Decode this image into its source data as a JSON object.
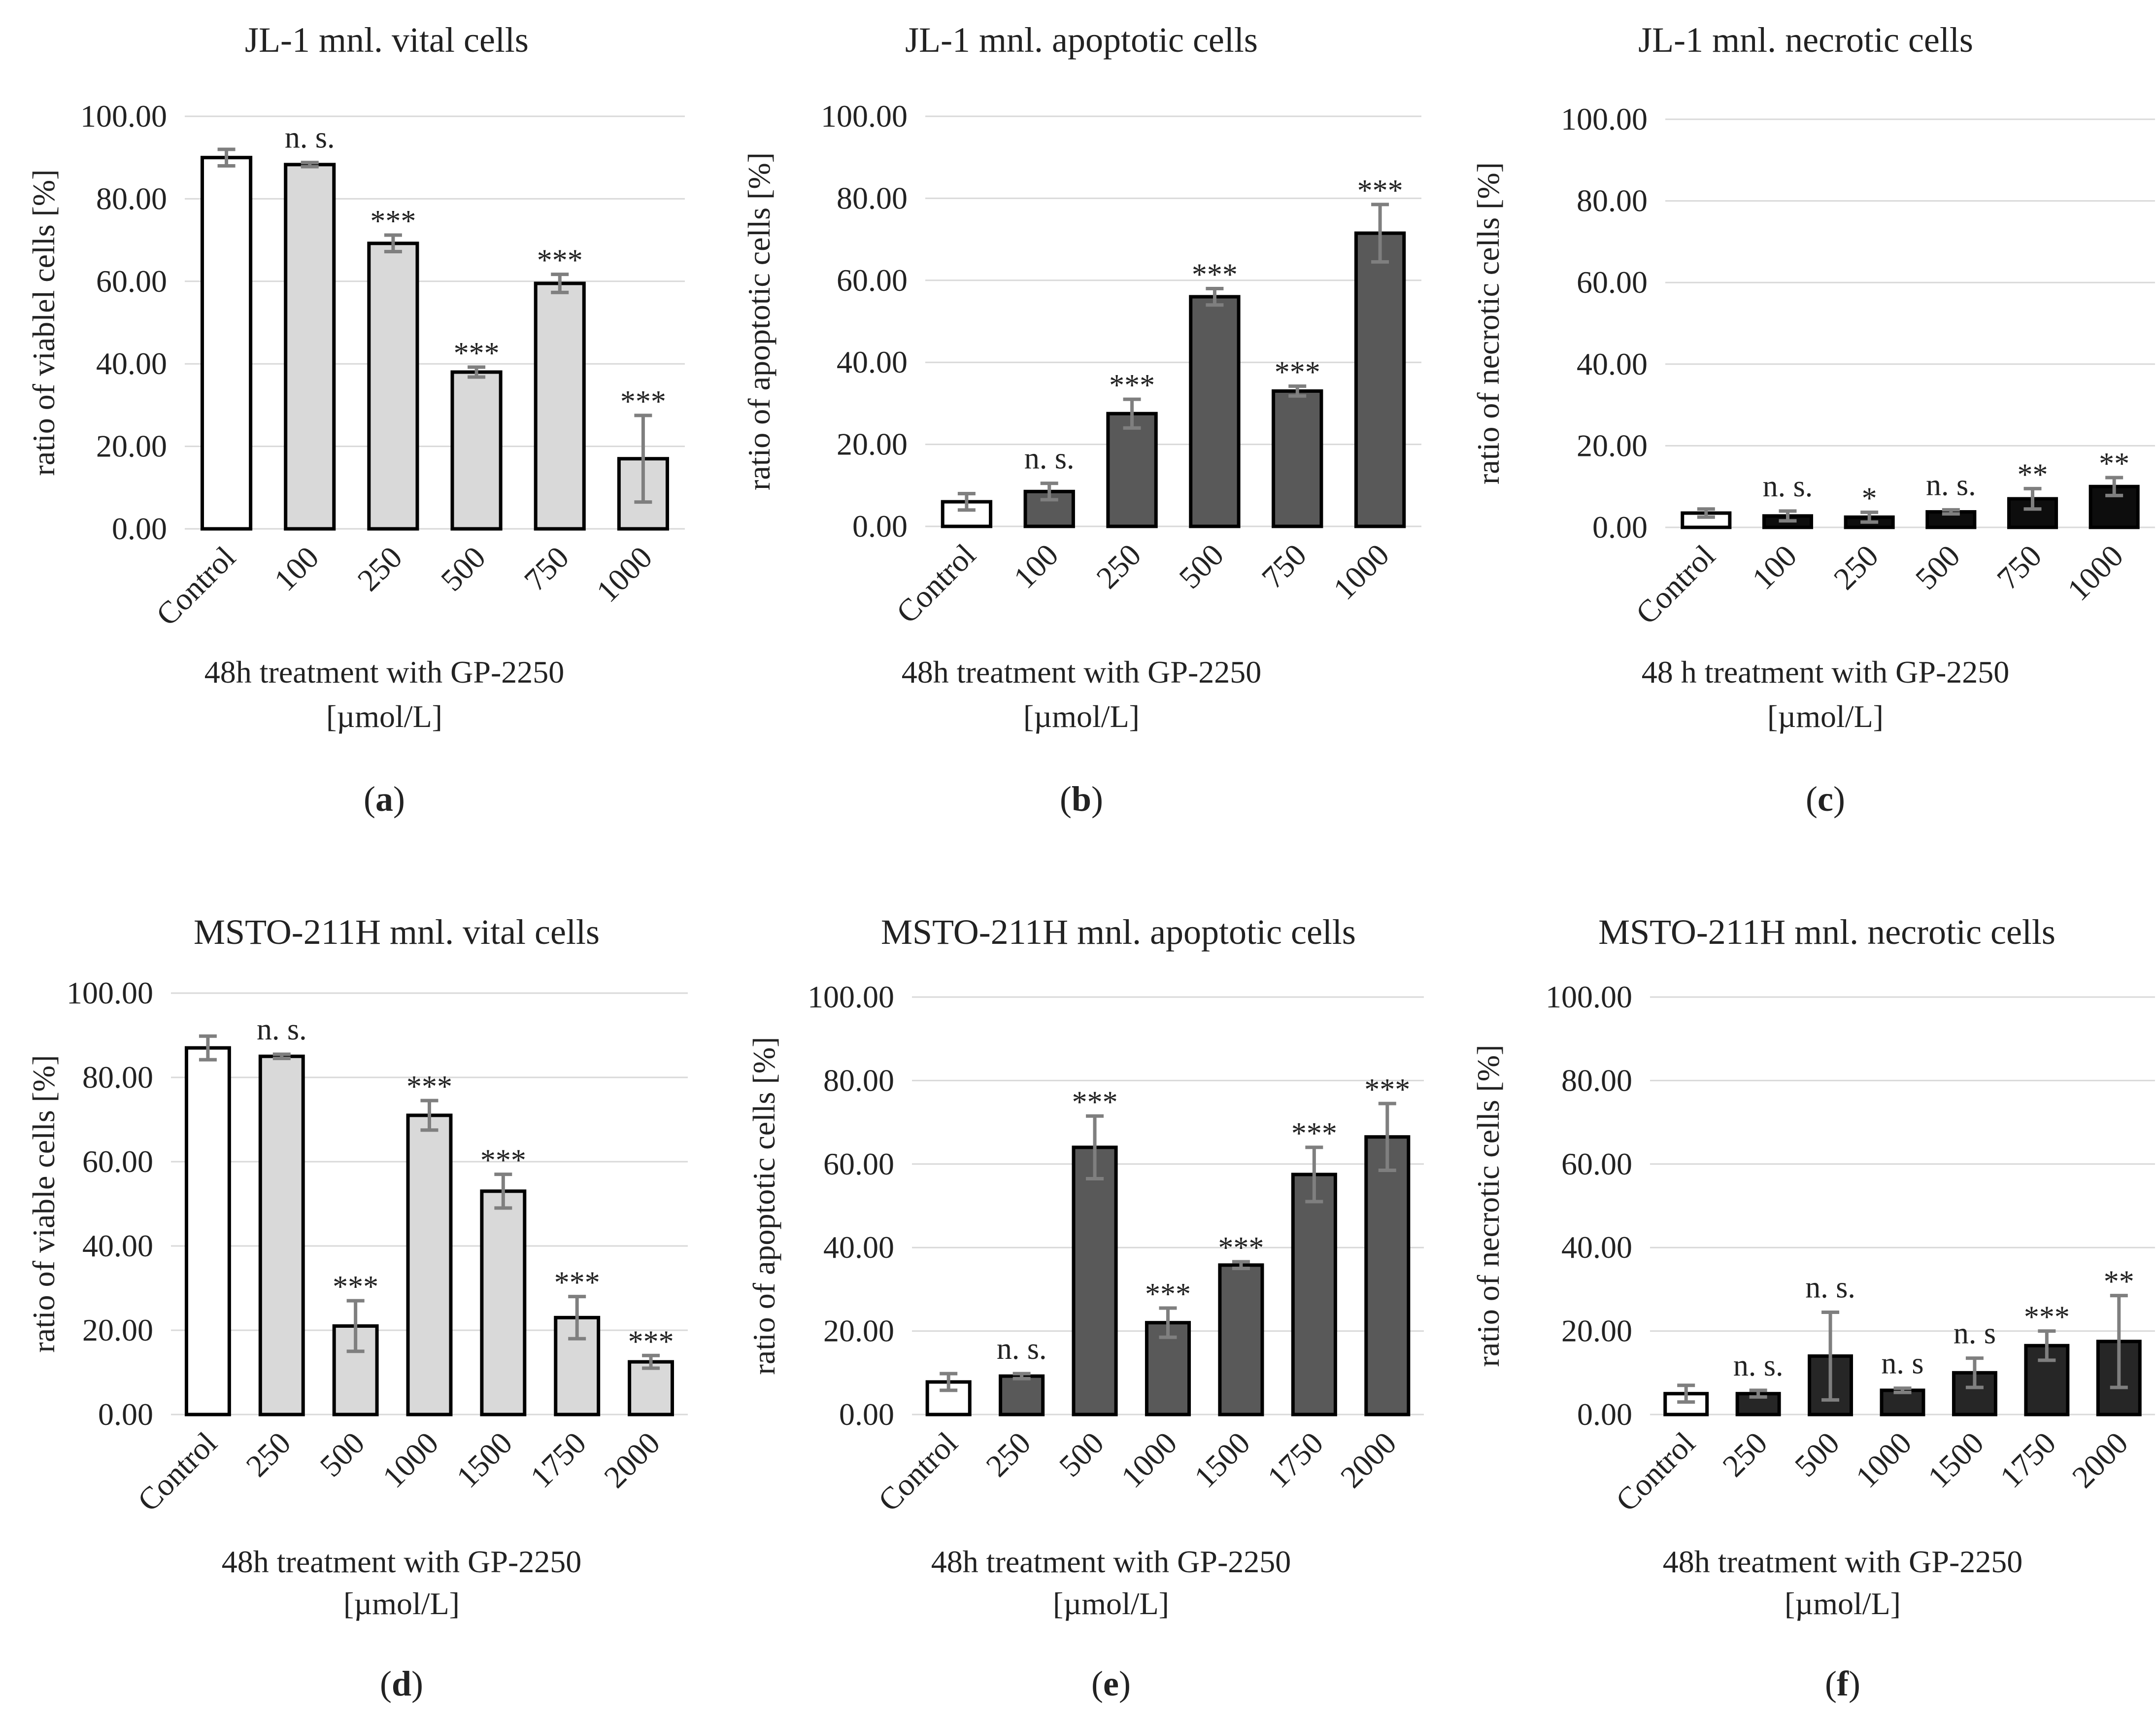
{
  "chart_data": [
    {
      "id": "a",
      "type": "bar",
      "title": "JL-1 mnl. vital cells",
      "ylabel": "ratio of viablel cells [%]",
      "xlabel": "48h treatment with GP-2250",
      "xlabel_unit": "[µmol/L]",
      "ylim": [
        0,
        100
      ],
      "yticks": [
        "0.00",
        "20.00",
        "40.00",
        "60.00",
        "80.00",
        "100.00"
      ],
      "categories": [
        "Control",
        "100",
        "250",
        "500",
        "750",
        "1000"
      ],
      "values": [
        90.0,
        88.3,
        69.2,
        38.0,
        59.5,
        17.0
      ],
      "errors": [
        2.0,
        0.5,
        2.0,
        1.2,
        2.2,
        10.5
      ],
      "significance": [
        "",
        "n. s.",
        "***",
        "***",
        "***",
        "***"
      ],
      "bar_colors": [
        "#ffffff",
        "#d9d9d9",
        "#d9d9d9",
        "#d9d9d9",
        "#d9d9d9",
        "#d9d9d9"
      ],
      "panel": "a"
    },
    {
      "id": "b",
      "type": "bar",
      "title": "JL-1 mnl. apoptotic cells",
      "ylabel": "ratio of apoptotic cells [%]",
      "xlabel": "48h treatment with GP-2250",
      "xlabel_unit": "[µmol/L]",
      "ylim": [
        0,
        100
      ],
      "yticks": [
        "0.00",
        "20.00",
        "40.00",
        "60.00",
        "80.00",
        "100.00"
      ],
      "categories": [
        "Control",
        "100",
        "250",
        "500",
        "750",
        "1000"
      ],
      "values": [
        6.0,
        8.5,
        27.5,
        56.0,
        33.0,
        71.5
      ],
      "errors": [
        2.0,
        2.0,
        3.5,
        2.0,
        1.2,
        7.0
      ],
      "significance": [
        "",
        "n. s.",
        "***",
        "***",
        "***",
        "***"
      ],
      "bar_colors": [
        "#ffffff",
        "#595959",
        "#595959",
        "#595959",
        "#595959",
        "#595959"
      ],
      "panel": "b"
    },
    {
      "id": "c",
      "type": "bar",
      "title": "JL-1 mnl. necrotic cells",
      "ylabel": "ratio of necrotic cells [%]",
      "xlabel": "48 h treatment with GP-2250",
      "xlabel_unit": "[µmol/L]",
      "ylim": [
        0,
        100
      ],
      "yticks": [
        "0.00",
        "20.00",
        "40.00",
        "60.00",
        "80.00",
        "100.00"
      ],
      "categories": [
        "Control",
        "100",
        "250",
        "500",
        "750",
        "1000"
      ],
      "values": [
        3.5,
        2.8,
        2.5,
        3.8,
        7.0,
        10.0
      ],
      "errors": [
        1.0,
        1.2,
        1.2,
        0.5,
        2.5,
        2.2
      ],
      "significance": [
        "",
        "n. s.",
        "*",
        "n. s.",
        "**",
        "**"
      ],
      "bar_colors": [
        "#ffffff",
        "#0d0d0d",
        "#0d0d0d",
        "#0d0d0d",
        "#0d0d0d",
        "#0d0d0d"
      ],
      "panel": "c"
    },
    {
      "id": "d",
      "type": "bar",
      "title": "MSTO-211H mnl. vital cells",
      "ylabel": "ratio of viable cells [%]",
      "xlabel": "48h treatment with GP-2250",
      "xlabel_unit": "[µmol/L]",
      "ylim": [
        0,
        100
      ],
      "yticks": [
        "0.00",
        "20.00",
        "40.00",
        "60.00",
        "80.00",
        "100.00"
      ],
      "categories": [
        "Control",
        "250",
        "500",
        "1000",
        "1500",
        "1750",
        "2000"
      ],
      "values": [
        87.0,
        85.0,
        21.0,
        71.0,
        53.0,
        23.0,
        12.5
      ],
      "errors": [
        2.8,
        0.5,
        6.0,
        3.5,
        4.0,
        5.0,
        1.5
      ],
      "significance": [
        "",
        "n. s.",
        "***",
        "***",
        "***",
        "***",
        "***"
      ],
      "bar_colors": [
        "#ffffff",
        "#d9d9d9",
        "#d9d9d9",
        "#d9d9d9",
        "#d9d9d9",
        "#d9d9d9",
        "#d9d9d9"
      ],
      "panel": "d"
    },
    {
      "id": "e",
      "type": "bar",
      "title": "MSTO-211H mnl. apoptotic cells",
      "ylabel": "ratio of apoptotic cells [%]",
      "xlabel": "48h treatment with GP-2250",
      "xlabel_unit": "[µmol/L]",
      "ylim": [
        0,
        100
      ],
      "yticks": [
        "0.00",
        "20.00",
        "40.00",
        "60.00",
        "80.00",
        "100.00"
      ],
      "categories": [
        "Control",
        "250",
        "500",
        "1000",
        "1500",
        "1750",
        "2000"
      ],
      "values": [
        7.8,
        9.2,
        64.0,
        22.0,
        35.8,
        57.5,
        66.5
      ],
      "errors": [
        2.0,
        0.6,
        7.5,
        3.5,
        0.8,
        6.5,
        8.0
      ],
      "significance": [
        "",
        "n. s.",
        "***",
        "***",
        "***",
        "***",
        "***"
      ],
      "bar_colors": [
        "#ffffff",
        "#595959",
        "#595959",
        "#595959",
        "#595959",
        "#595959",
        "#595959"
      ],
      "panel": "e"
    },
    {
      "id": "f",
      "type": "bar",
      "title": "MSTO-211H mnl. necrotic cells",
      "ylabel": "ratio of necrotic cells [%]",
      "xlabel": "48h treatment with GP-2250",
      "xlabel_unit": "[µmol/L]",
      "ylim": [
        0,
        100
      ],
      "yticks": [
        "0.00",
        "20.00",
        "40.00",
        "60.00",
        "80.00",
        "100.00"
      ],
      "categories": [
        "Control",
        "250",
        "500",
        "1000",
        "1500",
        "1750",
        "2000"
      ],
      "values": [
        5.0,
        5.0,
        14.0,
        5.8,
        10.0,
        16.5,
        17.5
      ],
      "errors": [
        2.0,
        0.8,
        10.5,
        0.5,
        3.5,
        3.5,
        11.0
      ],
      "significance": [
        "",
        "n. s.",
        "n. s.",
        "n. s",
        "n. s",
        "***",
        "**"
      ],
      "bar_colors": [
        "#ffffff",
        "#262626",
        "#262626",
        "#262626",
        "#262626",
        "#262626",
        "#262626"
      ],
      "panel": "f"
    }
  ]
}
